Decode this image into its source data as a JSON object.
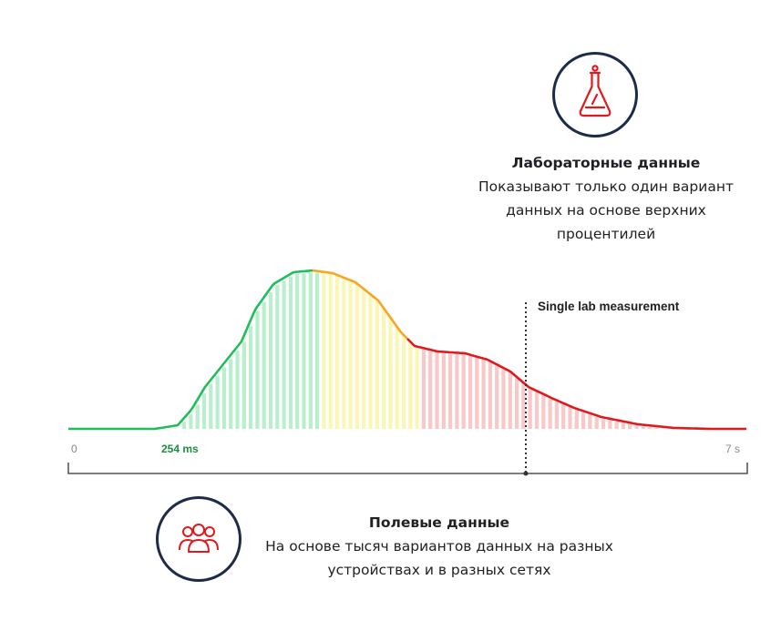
{
  "lab": {
    "title": "Лабораторные данные",
    "line1": "Показывают только один вариант",
    "line2": "данных на основе верхних",
    "line3": "процентилей",
    "icon": "flask-icon"
  },
  "field": {
    "title": "Полевые данные",
    "line1": "На основе тысяч вариантов данных на разных",
    "line2": "устройствах и в разных сетях",
    "icon": "users-group-icon"
  },
  "chart_data": {
    "type": "area",
    "x_start_label": "0",
    "x_end_label": "7 s",
    "threshold_label": "254 ms",
    "marker_label": "Single lab measurement",
    "colors": {
      "good": "#1fbe5a",
      "needs_improvement": "#f5a623",
      "poor": "#e0191f",
      "outline": "#1e2a4a"
    }
  }
}
